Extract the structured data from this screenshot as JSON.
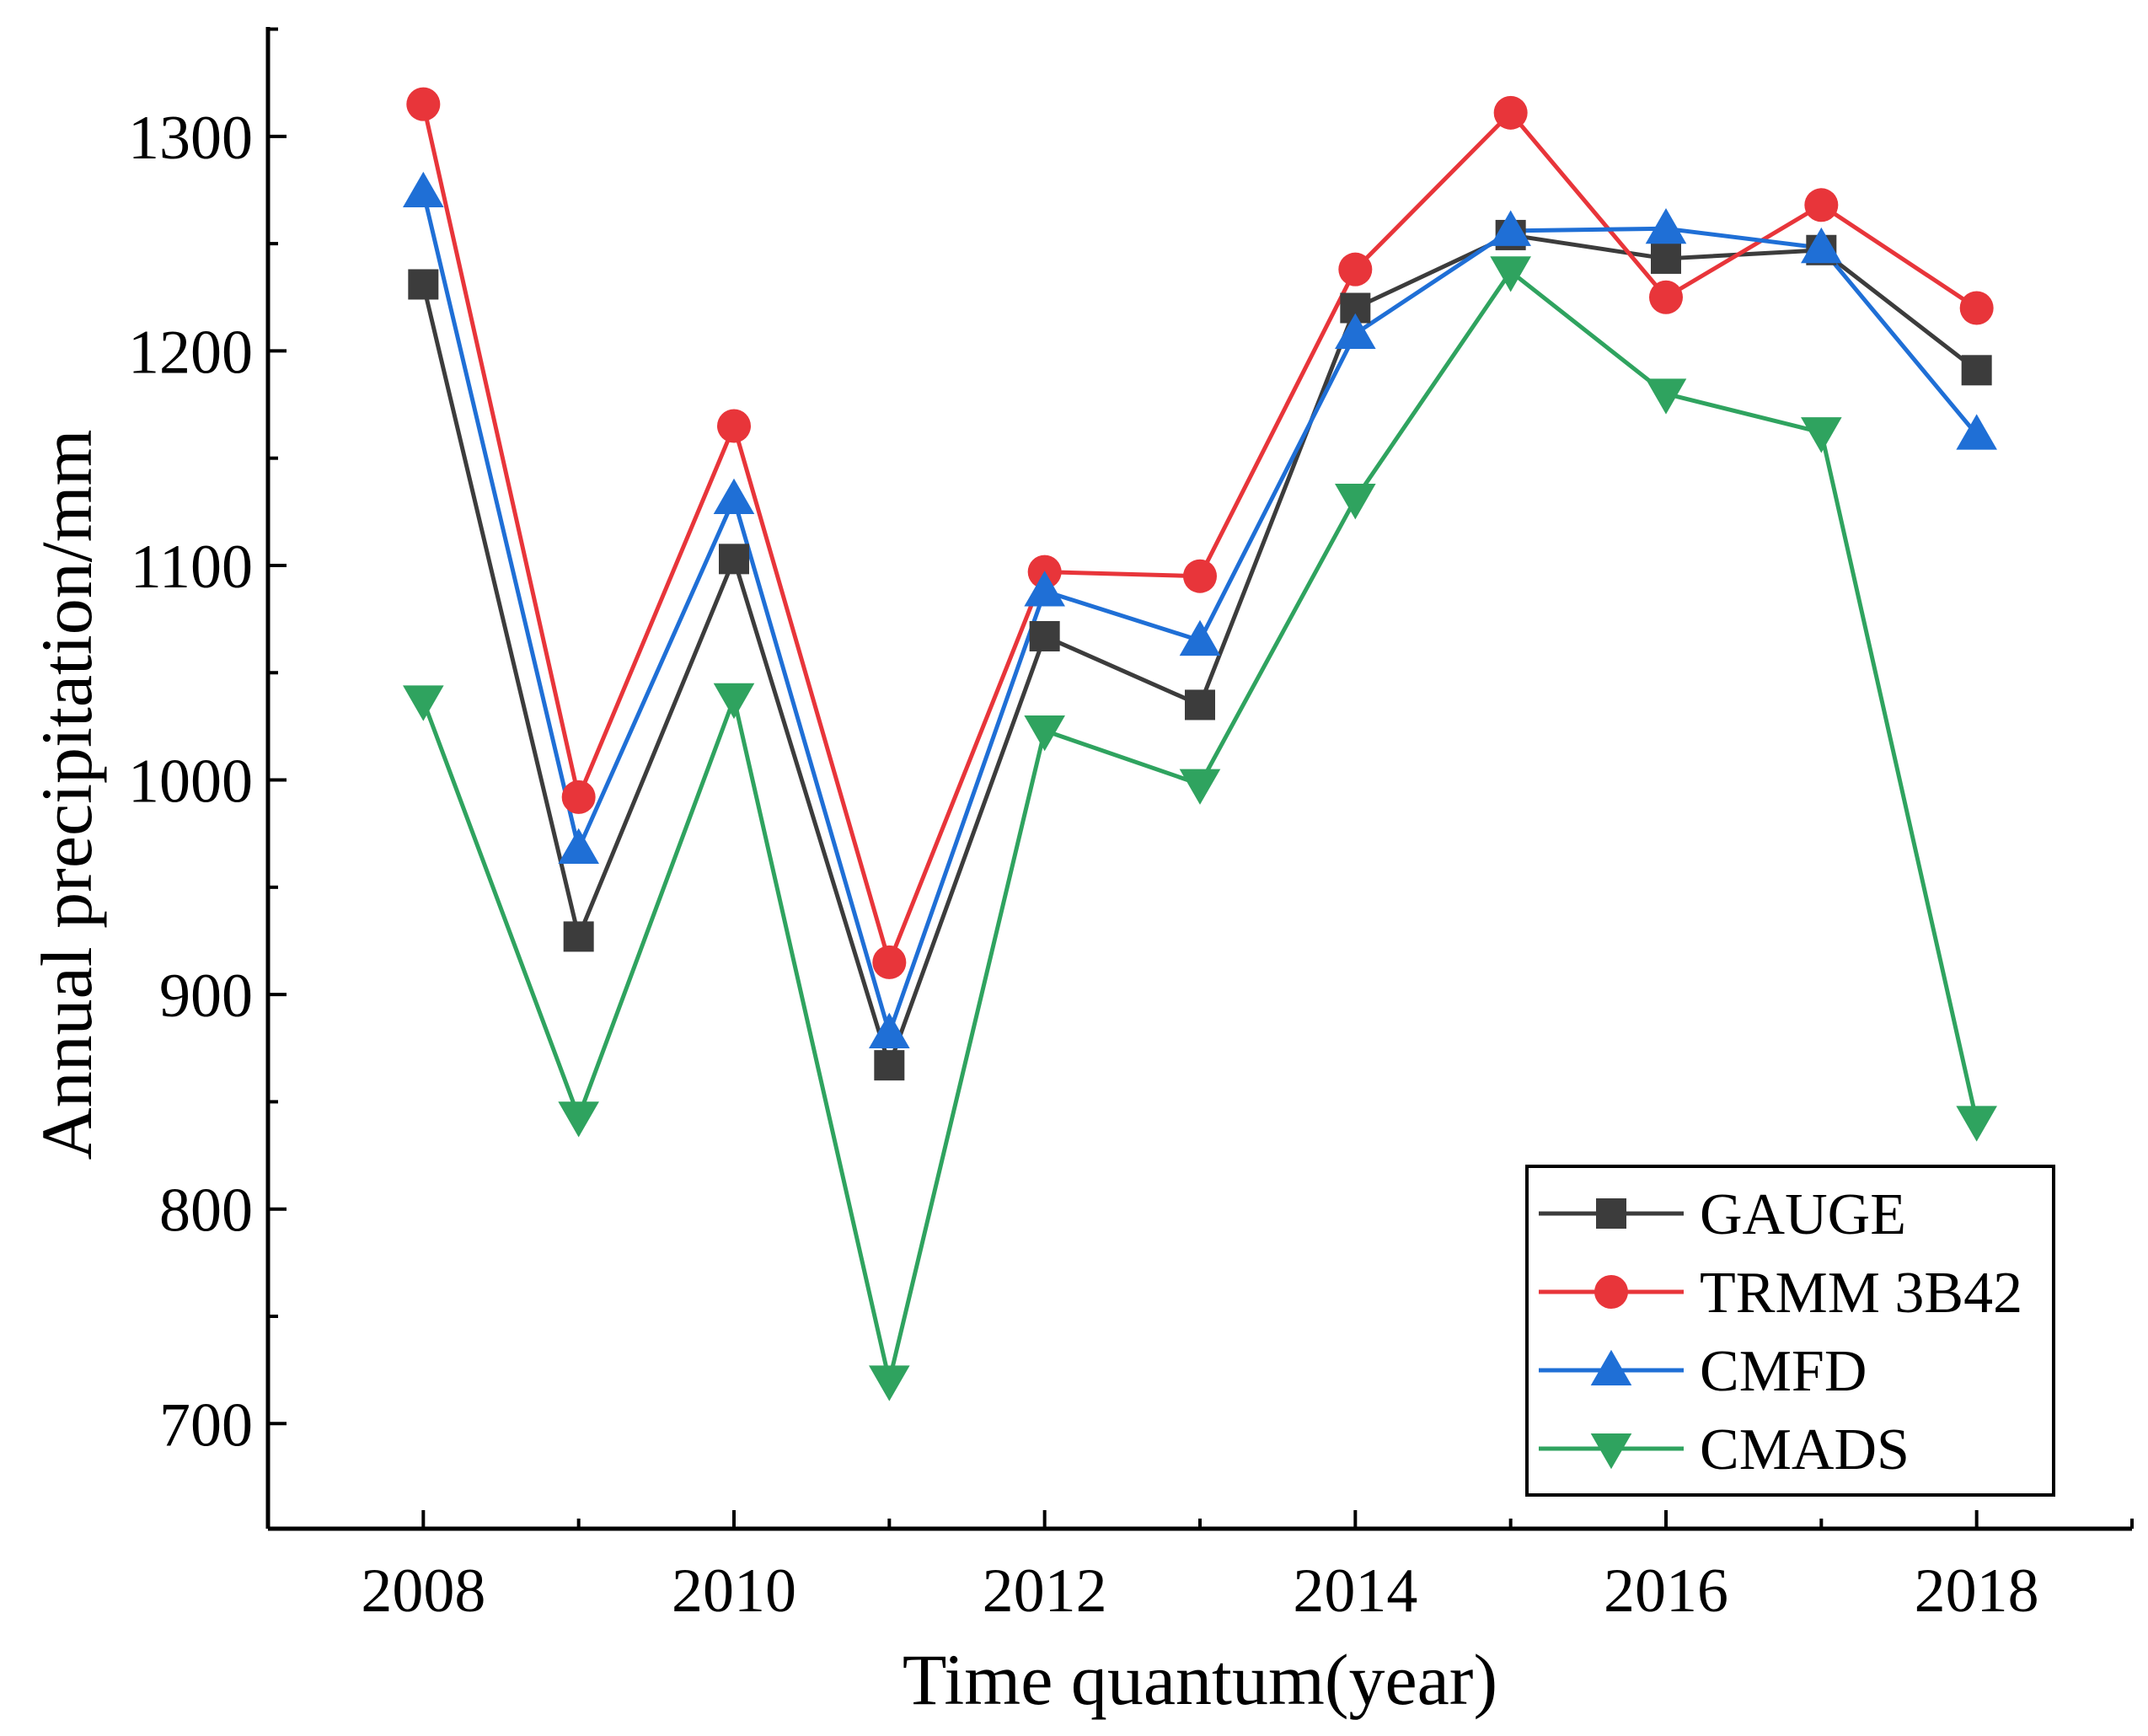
{
  "chart_data": {
    "type": "line",
    "title": "",
    "xlabel": "Time quantum(year)",
    "ylabel": "Annual precipitation/mm",
    "x": [
      2008,
      2009,
      2010,
      2011,
      2012,
      2013,
      2014,
      2015,
      2016,
      2017,
      2018
    ],
    "xlim": [
      2007,
      2019
    ],
    "ylim": [
      651,
      1351
    ],
    "x_ticks": [
      2008,
      2010,
      2012,
      2014,
      2016,
      2018
    ],
    "x_tick_labels": [
      "2008",
      "2010",
      "2012",
      "2014",
      "2016",
      "2018"
    ],
    "y_ticks": [
      700,
      800,
      900,
      1000,
      1100,
      1200,
      1300
    ],
    "y_tick_labels": [
      "700",
      "800",
      "900",
      "1000",
      "1100",
      "1200",
      "1300"
    ],
    "grid": false,
    "legend_position": "bottom-right",
    "series": [
      {
        "name": "GAUGE",
        "color": "#3c3c3c",
        "marker": "square",
        "values": [
          1231,
          927,
          1103,
          867,
          1067,
          1035,
          1220,
          1254,
          1243,
          1247,
          1191
        ]
      },
      {
        "name": "TRMM 3B42",
        "color": "#e8353a",
        "marker": "circle",
        "values": [
          1315,
          992,
          1165,
          915,
          1097,
          1095,
          1238,
          1311,
          1225,
          1268,
          1220
        ]
      },
      {
        "name": "CMFD",
        "color": "#1f6fd6",
        "marker": "triangle-up",
        "values": [
          1274,
          968,
          1131,
          882,
          1088,
          1065,
          1208,
          1256,
          1257,
          1248,
          1161
        ]
      },
      {
        "name": "CMADS",
        "color": "#2fa35f",
        "marker": "triangle-down",
        "values": [
          1037,
          843,
          1038,
          720,
          1023,
          998,
          1131,
          1237,
          1180,
          1162,
          841
        ]
      }
    ]
  }
}
